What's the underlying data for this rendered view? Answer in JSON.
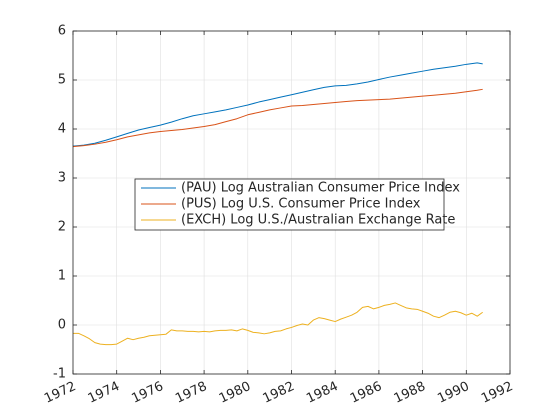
{
  "chart_data": {
    "type": "line",
    "title": "",
    "xlabel": "",
    "ylabel": "",
    "xlim": [
      1972,
      1992
    ],
    "ylim": [
      -1,
      6
    ],
    "xticks": [
      1972,
      1974,
      1976,
      1978,
      1980,
      1982,
      1984,
      1986,
      1988,
      1990,
      1992
    ],
    "yticks": [
      -1,
      0,
      1,
      2,
      3,
      4,
      5,
      6
    ],
    "xtick_labels": [
      "1972",
      "1974",
      "1976",
      "1978",
      "1980",
      "1982",
      "1984",
      "1986",
      "1988",
      "1990",
      "1992"
    ],
    "ytick_labels": [
      "-1",
      "0",
      "1",
      "2",
      "3",
      "4",
      "5",
      "6"
    ],
    "grid": true,
    "legend_position": "center-left",
    "series": [
      {
        "name": "(PAU) Log Australian Consumer Price Index",
        "color": "#0072BD",
        "x": [
          1972.0,
          1972.5,
          1973.0,
          1973.5,
          1974.0,
          1974.5,
          1975.0,
          1975.5,
          1976.0,
          1976.5,
          1977.0,
          1977.5,
          1978.0,
          1978.5,
          1979.0,
          1979.5,
          1980.0,
          1980.5,
          1981.0,
          1981.5,
          1982.0,
          1982.5,
          1983.0,
          1983.5,
          1984.0,
          1984.5,
          1985.0,
          1985.5,
          1986.0,
          1986.5,
          1987.0,
          1987.5,
          1988.0,
          1988.5,
          1989.0,
          1989.5,
          1990.0,
          1990.5,
          1990.75
        ],
        "y": [
          3.65,
          3.67,
          3.71,
          3.77,
          3.84,
          3.91,
          3.98,
          4.03,
          4.08,
          4.14,
          4.21,
          4.27,
          4.31,
          4.35,
          4.39,
          4.44,
          4.49,
          4.55,
          4.6,
          4.65,
          4.7,
          4.75,
          4.8,
          4.85,
          4.88,
          4.89,
          4.92,
          4.96,
          5.01,
          5.06,
          5.1,
          5.14,
          5.18,
          5.22,
          5.25,
          5.28,
          5.32,
          5.35,
          5.33
        ]
      },
      {
        "name": "(PUS) Log U.S. Consumer Price Index",
        "color": "#D95319",
        "x": [
          1972.0,
          1972.5,
          1973.0,
          1973.5,
          1974.0,
          1974.5,
          1975.0,
          1975.5,
          1976.0,
          1976.5,
          1977.0,
          1977.5,
          1978.0,
          1978.5,
          1979.0,
          1979.5,
          1980.0,
          1980.5,
          1981.0,
          1981.5,
          1982.0,
          1982.5,
          1983.0,
          1983.5,
          1984.0,
          1984.5,
          1985.0,
          1985.5,
          1986.0,
          1986.5,
          1987.0,
          1987.5,
          1988.0,
          1988.5,
          1989.0,
          1989.5,
          1990.0,
          1990.5,
          1990.75
        ],
        "y": [
          3.64,
          3.66,
          3.69,
          3.73,
          3.78,
          3.84,
          3.88,
          3.92,
          3.95,
          3.97,
          3.99,
          4.02,
          4.05,
          4.09,
          4.15,
          4.21,
          4.29,
          4.34,
          4.39,
          4.43,
          4.47,
          4.48,
          4.5,
          4.52,
          4.54,
          4.56,
          4.58,
          4.59,
          4.6,
          4.61,
          4.63,
          4.65,
          4.67,
          4.69,
          4.71,
          4.73,
          4.76,
          4.79,
          4.81
        ]
      },
      {
        "name": "(EXCH) Log U.S./Australian Exchange Rate",
        "color": "#EDB120",
        "x": [
          1972.0,
          1972.25,
          1972.5,
          1972.75,
          1973.0,
          1973.25,
          1973.5,
          1973.75,
          1974.0,
          1974.25,
          1974.5,
          1974.75,
          1975.0,
          1975.25,
          1975.5,
          1975.75,
          1976.0,
          1976.25,
          1976.5,
          1976.75,
          1977.0,
          1977.25,
          1977.5,
          1977.75,
          1978.0,
          1978.25,
          1978.5,
          1978.75,
          1979.0,
          1979.25,
          1979.5,
          1979.75,
          1980.0,
          1980.25,
          1980.5,
          1980.75,
          1981.0,
          1981.25,
          1981.5,
          1981.75,
          1982.0,
          1982.25,
          1982.5,
          1982.75,
          1983.0,
          1983.25,
          1983.5,
          1983.75,
          1984.0,
          1984.25,
          1984.5,
          1984.75,
          1985.0,
          1985.25,
          1985.5,
          1985.75,
          1986.0,
          1986.25,
          1986.5,
          1986.75,
          1987.0,
          1987.25,
          1987.5,
          1987.75,
          1988.0,
          1988.25,
          1988.5,
          1988.75,
          1989.0,
          1989.25,
          1989.5,
          1989.75,
          1990.0,
          1990.25,
          1990.5,
          1990.75
        ],
        "y": [
          -0.17,
          -0.17,
          -0.22,
          -0.28,
          -0.36,
          -0.39,
          -0.4,
          -0.4,
          -0.39,
          -0.33,
          -0.27,
          -0.3,
          -0.27,
          -0.25,
          -0.22,
          -0.21,
          -0.2,
          -0.19,
          -0.1,
          -0.12,
          -0.12,
          -0.13,
          -0.13,
          -0.14,
          -0.13,
          -0.14,
          -0.12,
          -0.11,
          -0.11,
          -0.1,
          -0.12,
          -0.08,
          -0.11,
          -0.15,
          -0.16,
          -0.18,
          -0.16,
          -0.13,
          -0.12,
          -0.08,
          -0.05,
          -0.01,
          0.02,
          0.0,
          0.1,
          0.15,
          0.13,
          0.1,
          0.07,
          0.12,
          0.16,
          0.2,
          0.26,
          0.36,
          0.38,
          0.33,
          0.36,
          0.4,
          0.42,
          0.45,
          0.4,
          0.35,
          0.33,
          0.32,
          0.28,
          0.24,
          0.18,
          0.15,
          0.2,
          0.26,
          0.28,
          0.25,
          0.2,
          0.24,
          0.18,
          0.26
        ]
      }
    ]
  }
}
